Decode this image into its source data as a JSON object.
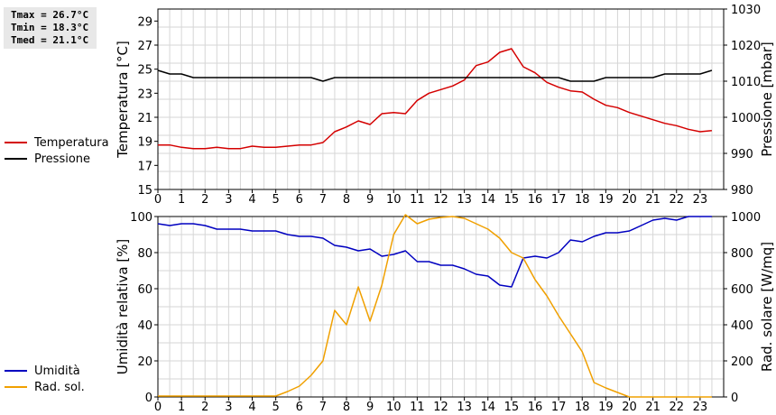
{
  "stats": {
    "tmax": "Tmax = 26.7°C",
    "tmin": "Tmin = 18.3°C",
    "tmed": "Tmed = 21.1°C"
  },
  "chart_data": [
    {
      "type": "line",
      "ylabel": "Temperatura [°C]",
      "y2label": "Pressione [mbar]",
      "xlim": [
        0,
        24
      ],
      "ylim": [
        15,
        30
      ],
      "y2lim": [
        980,
        1030
      ],
      "yticks": [
        15,
        17,
        19,
        21,
        23,
        25,
        27,
        29
      ],
      "y2ticks": [
        980,
        990,
        1000,
        1010,
        1020,
        1030
      ],
      "xticks": [
        0,
        1,
        2,
        3,
        4,
        5,
        6,
        7,
        8,
        9,
        10,
        11,
        12,
        13,
        14,
        15,
        16,
        17,
        18,
        19,
        20,
        21,
        22,
        23
      ],
      "grid": true,
      "legend": [
        {
          "name": "Temperatura",
          "color": "#d40000"
        },
        {
          "name": "Pressione",
          "color": "#000000"
        }
      ],
      "series": [
        {
          "name": "Temperatura",
          "axis": "left",
          "color": "#d40000",
          "x": [
            0,
            0.5,
            1,
            1.5,
            2,
            2.5,
            3,
            3.5,
            4,
            4.5,
            5,
            5.5,
            6,
            6.5,
            7,
            7.5,
            8,
            8.5,
            9,
            9.5,
            10,
            10.5,
            11,
            11.5,
            12,
            12.5,
            13,
            13.5,
            14,
            14.5,
            15,
            15.5,
            16,
            16.5,
            17,
            17.5,
            18,
            18.5,
            19,
            19.5,
            20,
            20.5,
            21,
            21.5,
            22,
            22.5,
            23,
            23.5
          ],
          "y": [
            18.7,
            18.7,
            18.5,
            18.4,
            18.4,
            18.5,
            18.4,
            18.4,
            18.6,
            18.5,
            18.5,
            18.6,
            18.7,
            18.7,
            18.9,
            19.8,
            20.2,
            20.7,
            20.4,
            21.3,
            21.4,
            21.3,
            22.4,
            23.0,
            23.3,
            23.6,
            24.1,
            25.3,
            25.6,
            26.4,
            26.7,
            25.2,
            24.7,
            23.9,
            23.5,
            23.2,
            23.1,
            22.5,
            22.0,
            21.8,
            21.4,
            21.1,
            20.8,
            20.5,
            20.3,
            20.0,
            19.8,
            19.9
          ]
        },
        {
          "name": "Pressione",
          "axis": "right",
          "color": "#000000",
          "x": [
            0,
            0.5,
            1,
            1.5,
            2,
            2.5,
            3,
            3.5,
            4,
            4.5,
            5,
            5.5,
            6,
            6.5,
            7,
            7.5,
            8,
            8.5,
            9,
            9.5,
            10,
            10.5,
            11,
            11.5,
            12,
            12.5,
            13,
            13.5,
            14,
            14.5,
            15,
            15.5,
            16,
            16.5,
            17,
            17.5,
            18,
            18.5,
            19,
            19.5,
            20,
            20.5,
            21,
            21.5,
            22,
            22.5,
            23,
            23.5
          ],
          "y": [
            1013,
            1012,
            1012,
            1011,
            1011,
            1011,
            1011,
            1011,
            1011,
            1011,
            1011,
            1011,
            1011,
            1011,
            1010,
            1011,
            1011,
            1011,
            1011,
            1011,
            1011,
            1011,
            1011,
            1011,
            1011,
            1011,
            1011,
            1011,
            1011,
            1011,
            1011,
            1011,
            1011,
            1011,
            1011,
            1010,
            1010,
            1010,
            1011,
            1011,
            1011,
            1011,
            1011,
            1012,
            1012,
            1012,
            1012,
            1013
          ]
        }
      ]
    },
    {
      "type": "line",
      "ylabel": "Umidità relativa [%]",
      "y2label": "Rad. solare [W/mq]",
      "xlim": [
        0,
        24
      ],
      "ylim": [
        0,
        100
      ],
      "y2lim": [
        0,
        1000
      ],
      "yticks": [
        0,
        20,
        40,
        60,
        80,
        100
      ],
      "y2ticks": [
        0,
        200,
        400,
        600,
        800,
        1000
      ],
      "xticks": [
        0,
        1,
        2,
        3,
        4,
        5,
        6,
        7,
        8,
        9,
        10,
        11,
        12,
        13,
        14,
        15,
        16,
        17,
        18,
        19,
        20,
        21,
        22,
        23
      ],
      "grid": true,
      "legend": [
        {
          "name": "Umidità",
          "color": "#0000c0"
        },
        {
          "name": "Rad. sol.",
          "color": "#f0a000"
        }
      ],
      "series": [
        {
          "name": "Umidità",
          "axis": "left",
          "color": "#0000c0",
          "x": [
            0,
            0.5,
            1,
            1.5,
            2,
            2.5,
            3,
            3.5,
            4,
            4.5,
            5,
            5.5,
            6,
            6.5,
            7,
            7.5,
            8,
            8.5,
            9,
            9.5,
            10,
            10.5,
            11,
            11.5,
            12,
            12.5,
            13,
            13.5,
            14,
            14.5,
            15,
            15.5,
            16,
            16.5,
            17,
            17.5,
            18,
            18.5,
            19,
            19.5,
            20,
            20.5,
            21,
            21.5,
            22,
            22.5,
            23,
            23.5
          ],
          "y": [
            96,
            95,
            96,
            96,
            95,
            93,
            93,
            93,
            92,
            92,
            92,
            90,
            89,
            89,
            88,
            84,
            83,
            81,
            82,
            78,
            79,
            81,
            75,
            75,
            73,
            73,
            71,
            68,
            67,
            62,
            61,
            77,
            78,
            77,
            80,
            87,
            86,
            89,
            91,
            91,
            92,
            95,
            98,
            99,
            98,
            100,
            100,
            100
          ]
        },
        {
          "name": "Rad. sol.",
          "axis": "right",
          "color": "#f0a000",
          "x": [
            0,
            0.5,
            1,
            1.5,
            2,
            2.5,
            3,
            3.5,
            4,
            4.5,
            5,
            5.5,
            6,
            6.5,
            7,
            7.5,
            8,
            8.5,
            9,
            9.5,
            10,
            10.5,
            11,
            11.5,
            12,
            12.5,
            13,
            13.5,
            14,
            14.5,
            15,
            15.5,
            16,
            16.5,
            17,
            17.5,
            18,
            18.5,
            19,
            19.5,
            20,
            20.5,
            21,
            21.5,
            22,
            22.5,
            23,
            23.5
          ],
          "y": [
            5,
            5,
            5,
            5,
            5,
            5,
            5,
            5,
            5,
            5,
            5,
            30,
            60,
            120,
            200,
            480,
            400,
            610,
            420,
            620,
            900,
            1010,
            960,
            985,
            995,
            1000,
            990,
            960,
            930,
            880,
            800,
            770,
            650,
            560,
            450,
            350,
            250,
            80,
            50,
            25,
            0,
            0,
            0,
            0,
            0,
            0,
            0,
            0
          ]
        }
      ]
    }
  ]
}
